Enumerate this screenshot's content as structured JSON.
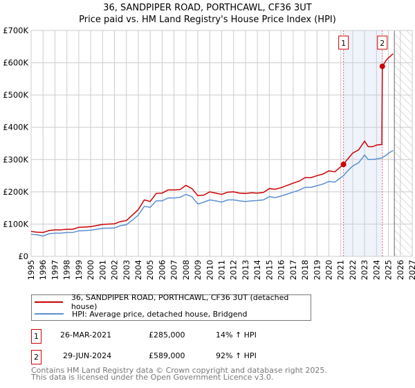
{
  "chart_data": {
    "type": "line",
    "title": "36, SANDPIPER ROAD, PORTHCAWL, CF36 3UT",
    "subtitle": "Price paid vs. HM Land Registry's House Price Index (HPI)",
    "xlim": [
      1995,
      2027
    ],
    "ylim": [
      0,
      700000
    ],
    "x_ticks": [
      "1995",
      "1996",
      "1997",
      "1998",
      "1999",
      "2000",
      "2001",
      "2002",
      "2003",
      "2004",
      "2005",
      "2006",
      "2007",
      "2008",
      "2009",
      "2010",
      "2011",
      "2012",
      "2013",
      "2014",
      "2015",
      "2016",
      "2017",
      "2018",
      "2019",
      "2020",
      "2021",
      "2022",
      "2023",
      "2024",
      "2025",
      "2026",
      "2027"
    ],
    "y_ticks": [
      {
        "v": 0,
        "label": "£0"
      },
      {
        "v": 100000,
        "label": "£100K"
      },
      {
        "v": 200000,
        "label": "£200K"
      },
      {
        "v": 300000,
        "label": "£300K"
      },
      {
        "v": 400000,
        "label": "£400K"
      },
      {
        "v": 500000,
        "label": "£500K"
      },
      {
        "v": 600000,
        "label": "£600K"
      },
      {
        "v": 700000,
        "label": "£700K"
      }
    ],
    "shaded_period": [
      2021.23,
      2024.49
    ],
    "forecast_hatch_from": 2025.5,
    "series": [
      {
        "name": "36, SANDPIPER ROAD, PORTHCAWL, CF36 3UT (detached house)",
        "color": "#cc0000",
        "x": [
          1995,
          1995.5,
          1996,
          1996.5,
          1997,
          1997.5,
          1998,
          1998.5,
          1999,
          2000,
          2001,
          2002,
          2002.5,
          2003,
          2003.5,
          2004,
          2004.5,
          2005,
          2005.5,
          2006,
          2006.5,
          2007,
          2007.5,
          2008,
          2008.5,
          2009,
          2009.5,
          2010,
          2010.5,
          2011,
          2011.5,
          2012,
          2012.5,
          2013,
          2013.5,
          2014,
          2014.5,
          2015,
          2015.5,
          2016,
          2016.5,
          2017,
          2017.5,
          2018,
          2018.5,
          2019,
          2019.5,
          2020,
          2020.5,
          2021,
          2021.23,
          2021.5,
          2022,
          2022.5,
          2023,
          2023.3,
          2023.7,
          2024,
          2024.45,
          2024.49,
          2024.8,
          2025,
          2025.4
        ],
        "y": [
          77000,
          75000,
          74000,
          80000,
          82000,
          82000,
          84000,
          84000,
          90000,
          92000,
          99000,
          101000,
          108000,
          111000,
          128000,
          145000,
          175000,
          170000,
          195000,
          196000,
          206000,
          206000,
          207000,
          220000,
          210000,
          188000,
          190000,
          200000,
          196000,
          192000,
          199000,
          200000,
          196000,
          195000,
          197000,
          196000,
          198000,
          210000,
          208000,
          213000,
          220000,
          227000,
          233000,
          244000,
          244000,
          250000,
          255000,
          265000,
          262000,
          278000,
          285000,
          298000,
          320000,
          330000,
          357000,
          340000,
          340000,
          345000,
          347000,
          589000,
          607000,
          615000,
          628000
        ]
      },
      {
        "name": "HPI: Average price, detached house, Bridgend",
        "color": "#5b8fd4",
        "x": [
          1995,
          1995.5,
          1996,
          1996.5,
          1997,
          1997.5,
          1998,
          1998.5,
          1999,
          2000,
          2001,
          2002,
          2002.5,
          2003,
          2003.5,
          2004,
          2004.5,
          2005,
          2005.5,
          2006,
          2006.5,
          2007,
          2007.5,
          2008,
          2008.5,
          2009,
          2009.5,
          2010,
          2010.5,
          2011,
          2011.5,
          2012,
          2012.5,
          2013,
          2013.5,
          2014,
          2014.5,
          2015,
          2015.5,
          2016,
          2016.5,
          2017,
          2017.5,
          2018,
          2018.5,
          2019,
          2019.5,
          2020,
          2020.5,
          2021,
          2021.23,
          2021.5,
          2022,
          2022.5,
          2023,
          2023.3,
          2023.7,
          2024,
          2024.45,
          2024.49,
          2024.8,
          2025,
          2025.4
        ],
        "y": [
          68000,
          67000,
          63000,
          70000,
          72000,
          72000,
          74000,
          74000,
          79000,
          81000,
          87000,
          88000,
          95000,
          98000,
          112000,
          128000,
          155000,
          152000,
          172000,
          172000,
          181000,
          181000,
          183000,
          192000,
          185000,
          162000,
          168000,
          175000,
          172000,
          168000,
          175000,
          175000,
          172000,
          170000,
          172000,
          173000,
          175000,
          185000,
          182000,
          187000,
          193000,
          199000,
          205000,
          214000,
          214000,
          219000,
          224000,
          232000,
          230000,
          244000,
          250000,
          262000,
          280000,
          290000,
          314000,
          300000,
          300000,
          302000,
          305000,
          306000,
          313000,
          320000,
          328000
        ]
      }
    ],
    "sales": [
      {
        "n": "1",
        "x": 2021.23,
        "y": 285000
      },
      {
        "n": "2",
        "x": 2024.49,
        "y": 589000
      }
    ]
  },
  "legend": {
    "series1": "36, SANDPIPER ROAD, PORTHCAWL, CF36 3UT (detached house)",
    "series2": "HPI: Average price, detached house, Bridgend"
  },
  "sales_table": [
    {
      "n": "1",
      "date": "26-MAR-2021",
      "price": "£285,000",
      "hpi": "14% ↑ HPI"
    },
    {
      "n": "2",
      "date": "29-JUN-2024",
      "price": "£589,000",
      "hpi": "92% ↑ HPI"
    }
  ],
  "footer": {
    "line1": "Contains HM Land Registry data © Crown copyright and database right 2025.",
    "line2": "This data is licensed under the Open Government Licence v3.0."
  }
}
